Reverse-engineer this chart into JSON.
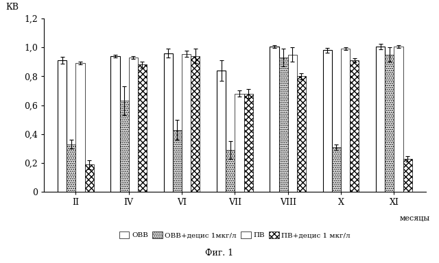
{
  "title_ylabel": "КВ",
  "xlabel": "месяцы",
  "caption": "Фиг. 1",
  "categories": [
    "II",
    "IV",
    "VI",
    "VII",
    "VIII",
    "X",
    "XI"
  ],
  "series": {
    "OBB": [
      0.91,
      0.94,
      0.96,
      0.84,
      1.005,
      0.98,
      1.005
    ],
    "OBB_d": [
      0.33,
      0.63,
      0.43,
      0.29,
      0.93,
      0.31,
      0.95
    ],
    "PB": [
      0.89,
      0.93,
      0.955,
      0.68,
      0.95,
      0.99,
      1.005
    ],
    "PB_d": [
      0.19,
      0.88,
      0.94,
      0.68,
      0.8,
      0.91,
      0.23
    ]
  },
  "errors": {
    "OBB": [
      0.025,
      0.01,
      0.03,
      0.07,
      0.01,
      0.015,
      0.02
    ],
    "OBB_d": [
      0.03,
      0.1,
      0.07,
      0.06,
      0.06,
      0.02,
      0.05
    ],
    "PB": [
      0.01,
      0.01,
      0.02,
      0.02,
      0.05,
      0.01,
      0.01
    ],
    "PB_d": [
      0.03,
      0.02,
      0.05,
      0.03,
      0.02,
      0.015,
      0.02
    ]
  },
  "ylim": [
    0,
    1.2
  ],
  "yticks": [
    0,
    0.2,
    0.4,
    0.6,
    0.8,
    1.0,
    1.2
  ],
  "ytick_labels": [
    "0",
    "0,2",
    "0,4",
    "0,6",
    "0,8",
    "1,0",
    "1,2"
  ],
  "bar_width": 0.17,
  "legend_labels": [
    "ОВВ",
    "ОВВ+децис 1мкг/л",
    "ПВ",
    "ПВ+децис 1 мкг/л"
  ]
}
